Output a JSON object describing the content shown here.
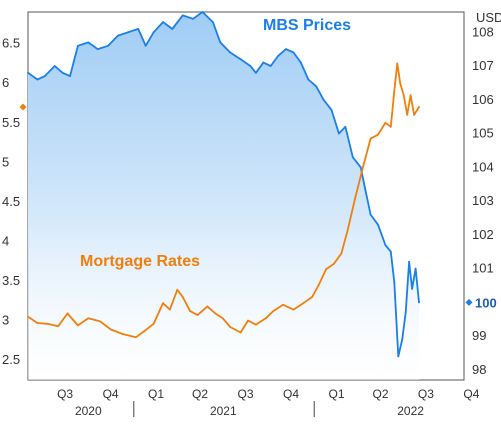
{
  "chart_data": {
    "type": "line",
    "unit_label": "USD",
    "left_axis": {
      "ticks": [
        2.5,
        3,
        3.5,
        4,
        4.5,
        5,
        5.5,
        6,
        6.5
      ],
      "ylim": [
        2.25,
        6.9
      ]
    },
    "right_axis": {
      "ticks": [
        98,
        99,
        100,
        101,
        102,
        103,
        104,
        105,
        106,
        107,
        108
      ],
      "ylim": [
        97.7,
        108.6
      ]
    },
    "x_axis": {
      "range": [
        "2020-06-01",
        "2022-10-31"
      ],
      "quarter_ticks": [
        {
          "label": "Q3",
          "date": "2020-08-15"
        },
        {
          "label": "Q4",
          "date": "2020-11-15"
        },
        {
          "label": "Q1",
          "date": "2021-02-15"
        },
        {
          "label": "Q2",
          "date": "2021-05-15"
        },
        {
          "label": "Q3",
          "date": "2021-08-15"
        },
        {
          "label": "Q4",
          "date": "2021-11-15"
        },
        {
          "label": "Q1",
          "date": "2022-02-15"
        },
        {
          "label": "Q2",
          "date": "2022-05-15"
        },
        {
          "label": "Q3",
          "date": "2022-08-15"
        },
        {
          "label": "Q4",
          "date": "2022-11-15"
        }
      ],
      "years": [
        {
          "label": "2020",
          "date": "2020-10-01"
        },
        {
          "label": "2021",
          "date": "2021-07-01"
        },
        {
          "label": "2022",
          "date": "2022-07-15"
        }
      ],
      "year_separators": [
        "2021-01-01",
        "2022-01-01"
      ]
    },
    "series": [
      {
        "name": "MBS Prices",
        "axis": "right",
        "color": "#1a7fe8",
        "fill": "gradient",
        "points": [
          [
            "2020-06-01",
            106.8
          ],
          [
            "2020-06-20",
            106.6
          ],
          [
            "2020-07-05",
            106.7
          ],
          [
            "2020-07-25",
            107.0
          ],
          [
            "2020-08-10",
            106.8
          ],
          [
            "2020-08-25",
            106.7
          ],
          [
            "2020-09-10",
            107.6
          ],
          [
            "2020-10-01",
            107.7
          ],
          [
            "2020-10-20",
            107.5
          ],
          [
            "2020-11-10",
            107.6
          ],
          [
            "2020-11-30",
            107.9
          ],
          [
            "2020-12-20",
            108.0
          ],
          [
            "2021-01-10",
            108.1
          ],
          [
            "2021-01-25",
            107.6
          ],
          [
            "2021-02-10",
            108.0
          ],
          [
            "2021-03-01",
            108.3
          ],
          [
            "2021-03-20",
            108.1
          ],
          [
            "2021-04-10",
            108.5
          ],
          [
            "2021-05-01",
            108.4
          ],
          [
            "2021-05-20",
            108.6
          ],
          [
            "2021-06-10",
            108.3
          ],
          [
            "2021-06-25",
            107.7
          ],
          [
            "2021-07-15",
            107.4
          ],
          [
            "2021-08-05",
            107.2
          ],
          [
            "2021-08-25",
            107.0
          ],
          [
            "2021-09-05",
            106.8
          ],
          [
            "2021-09-20",
            107.1
          ],
          [
            "2021-10-05",
            107.0
          ],
          [
            "2021-10-20",
            107.3
          ],
          [
            "2021-11-05",
            107.5
          ],
          [
            "2021-11-20",
            107.4
          ],
          [
            "2021-12-05",
            107.1
          ],
          [
            "2021-12-20",
            106.6
          ],
          [
            "2022-01-05",
            106.4
          ],
          [
            "2022-01-20",
            106.0
          ],
          [
            "2022-02-05",
            105.7
          ],
          [
            "2022-02-20",
            105.0
          ],
          [
            "2022-03-05",
            105.2
          ],
          [
            "2022-03-20",
            104.3
          ],
          [
            "2022-04-05",
            104.0
          ],
          [
            "2022-04-15",
            103.3
          ],
          [
            "2022-04-25",
            102.6
          ],
          [
            "2022-05-10",
            102.3
          ],
          [
            "2022-05-25",
            101.7
          ],
          [
            "2022-06-05",
            101.5
          ],
          [
            "2022-06-12",
            100.6
          ],
          [
            "2022-06-20",
            98.4
          ],
          [
            "2022-06-28",
            98.9
          ],
          [
            "2022-07-05",
            99.7
          ],
          [
            "2022-07-12",
            101.2
          ],
          [
            "2022-07-18",
            100.4
          ],
          [
            "2022-07-25",
            101.0
          ],
          [
            "2022-08-01",
            100.0
          ]
        ]
      },
      {
        "name": "Mortgage Rates",
        "axis": "left",
        "color": "#f07f0c",
        "points": [
          [
            "2020-06-01",
            3.05
          ],
          [
            "2020-06-20",
            2.97
          ],
          [
            "2020-07-10",
            2.96
          ],
          [
            "2020-08-01",
            2.93
          ],
          [
            "2020-08-20",
            3.09
          ],
          [
            "2020-09-10",
            2.94
          ],
          [
            "2020-10-01",
            3.03
          ],
          [
            "2020-10-25",
            2.99
          ],
          [
            "2020-11-15",
            2.89
          ],
          [
            "2020-12-10",
            2.83
          ],
          [
            "2021-01-05",
            2.79
          ],
          [
            "2021-01-25",
            2.88
          ],
          [
            "2021-02-10",
            2.96
          ],
          [
            "2021-03-01",
            3.22
          ],
          [
            "2021-03-15",
            3.14
          ],
          [
            "2021-03-30",
            3.39
          ],
          [
            "2021-04-10",
            3.3
          ],
          [
            "2021-04-25",
            3.12
          ],
          [
            "2021-05-10",
            3.07
          ],
          [
            "2021-05-30",
            3.18
          ],
          [
            "2021-06-15",
            3.09
          ],
          [
            "2021-06-30",
            3.03
          ],
          [
            "2021-07-15",
            2.92
          ],
          [
            "2021-08-05",
            2.85
          ],
          [
            "2021-08-20",
            3.0
          ],
          [
            "2021-09-05",
            2.95
          ],
          [
            "2021-09-25",
            3.03
          ],
          [
            "2021-10-10",
            3.12
          ],
          [
            "2021-10-30",
            3.2
          ],
          [
            "2021-11-20",
            3.14
          ],
          [
            "2021-12-10",
            3.22
          ],
          [
            "2021-12-28",
            3.3
          ],
          [
            "2022-01-10",
            3.45
          ],
          [
            "2022-01-25",
            3.65
          ],
          [
            "2022-02-10",
            3.72
          ],
          [
            "2022-02-25",
            3.85
          ],
          [
            "2022-03-10",
            4.15
          ],
          [
            "2022-03-25",
            4.55
          ],
          [
            "2022-04-10",
            4.95
          ],
          [
            "2022-04-25",
            5.3
          ],
          [
            "2022-05-10",
            5.35
          ],
          [
            "2022-05-25",
            5.5
          ],
          [
            "2022-06-05",
            5.45
          ],
          [
            "2022-06-12",
            5.9
          ],
          [
            "2022-06-18",
            6.25
          ],
          [
            "2022-06-24",
            6.0
          ],
          [
            "2022-07-01",
            5.85
          ],
          [
            "2022-07-08",
            5.6
          ],
          [
            "2022-07-15",
            5.85
          ],
          [
            "2022-07-22",
            5.6
          ],
          [
            "2022-08-01",
            5.7
          ]
        ]
      }
    ],
    "markers": [
      {
        "axis": "left",
        "value": 5.7,
        "color": "#f07f0c"
      },
      {
        "axis": "right",
        "value": 100.0,
        "label": "100",
        "color": "#1a7fe8"
      }
    ]
  },
  "labels": {
    "mbs": "MBS Prices",
    "rates": "Mortgage Rates"
  }
}
